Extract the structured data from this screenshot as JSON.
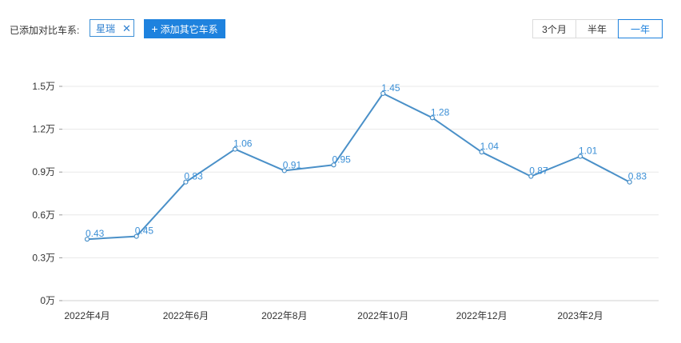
{
  "toolbar": {
    "compare_label": "已添加对比车系:",
    "selected_series": "星瑞",
    "remove_icon": "close-icon",
    "add_label": "添加其它车系",
    "add_icon": "plus-icon",
    "ranges": [
      "3个月",
      "半年",
      "一年"
    ],
    "active_range": "一年"
  },
  "colors": {
    "accent": "#1e82de",
    "line": "#4a90c8",
    "grid": "#e8e8e8"
  },
  "chart_data": {
    "type": "line",
    "title": "",
    "xlabel": "",
    "ylabel": "",
    "unit": "万",
    "x": [
      "2022年4月",
      "2022年5月",
      "2022年6月",
      "2022年7月",
      "2022年8月",
      "2022年9月",
      "2022年10月",
      "2022年11月",
      "2022年12月",
      "2023年1月",
      "2023年2月",
      "2023年3月"
    ],
    "x_tick_labels": [
      "2022年4月",
      "2022年6月",
      "2022年8月",
      "2022年10月",
      "2022年12月",
      "2023年2月"
    ],
    "series": [
      {
        "name": "星瑞",
        "values": [
          0.43,
          0.45,
          0.83,
          1.06,
          0.91,
          0.95,
          1.45,
          1.28,
          1.04,
          0.87,
          1.01,
          0.83
        ],
        "labels": [
          "0.43",
          "0.45",
          "0.83",
          "1.06",
          "0.91",
          "0.95",
          "1.45",
          "1.28",
          "1.04",
          "0.87",
          "1.01",
          "0.83"
        ]
      }
    ],
    "y_ticks": [
      0,
      0.3,
      0.6,
      0.9,
      1.2,
      1.5
    ],
    "y_tick_labels": [
      "0万",
      "0.3万",
      "0.6万",
      "0.9万",
      "1.2万",
      "1.5万"
    ],
    "ylim": [
      0,
      1.5
    ],
    "grid": true,
    "legend": "none"
  }
}
